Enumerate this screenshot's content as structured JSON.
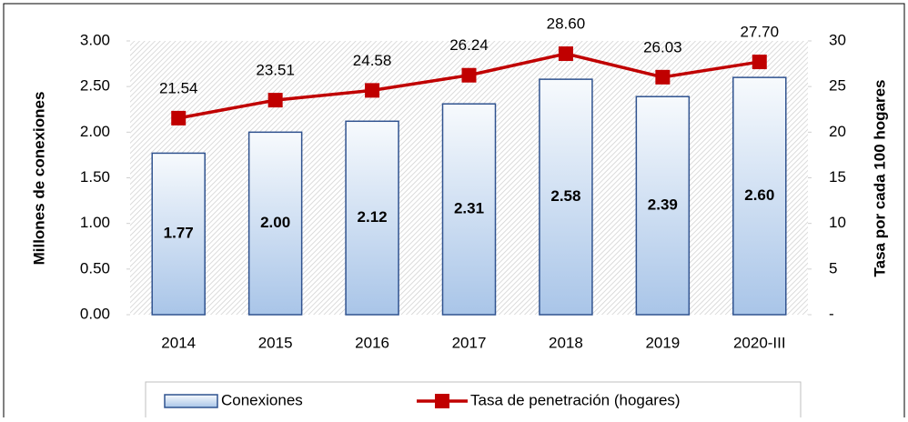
{
  "chart_data": {
    "type": "bar",
    "categories": [
      "2014",
      "2015",
      "2016",
      "2017",
      "2018",
      "2019",
      "2020-III"
    ],
    "series": [
      {
        "name": "Conexiones",
        "type": "bar",
        "color": "#2f528f",
        "values": [
          1.77,
          2.0,
          2.12,
          2.31,
          2.58,
          2.39,
          2.6
        ],
        "value_labels": [
          "1.77",
          "2.00",
          "2.12",
          "2.31",
          "2.58",
          "2.39",
          "2.60"
        ]
      },
      {
        "name": "Tasa de penetración (hogares)",
        "type": "line",
        "axis": "y2",
        "color": "#c00000",
        "values": [
          21.54,
          23.51,
          24.58,
          26.24,
          28.6,
          26.03,
          27.7
        ],
        "value_labels": [
          "21.54",
          "23.51",
          "24.58",
          "26.24",
          "28.60",
          "26.03",
          "27.70"
        ]
      }
    ],
    "y_label": "Millones de conexiones",
    "y2_label": "Tasa por cada 100 hogares",
    "ylim": [
      0,
      3
    ],
    "yticks": [
      {
        "value": 0,
        "label": "0.00"
      },
      {
        "value": 0.5,
        "label": "0.50"
      },
      {
        "value": 1,
        "label": "1.00"
      },
      {
        "value": 1.5,
        "label": "1.50"
      },
      {
        "value": 2,
        "label": "2.00"
      },
      {
        "value": 2.5,
        "label": "2.50"
      },
      {
        "value": 3,
        "label": "3.00"
      }
    ],
    "y2lim": [
      0,
      30
    ],
    "y2ticks": [
      {
        "value": 0,
        "label": "-"
      },
      5,
      10,
      15,
      20,
      25,
      30
    ],
    "legend": "bottom"
  }
}
